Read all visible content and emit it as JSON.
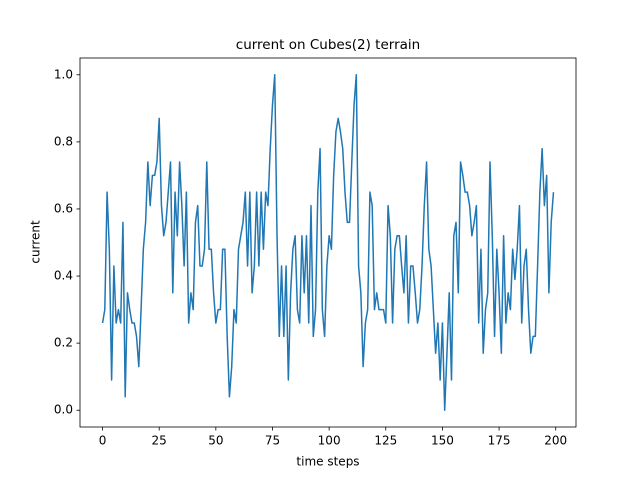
{
  "chart_data": {
    "type": "line",
    "title": "current on Cubes(2) terrain",
    "x_label": "time steps",
    "y_label": "current",
    "color": "#1f77b4",
    "x": [
      0,
      1,
      2,
      3,
      4,
      5,
      6,
      7,
      8,
      9,
      10,
      11,
      12,
      13,
      14,
      15,
      16,
      17,
      18,
      19,
      20,
      21,
      22,
      23,
      24,
      25,
      26,
      27,
      28,
      29,
      30,
      31,
      32,
      33,
      34,
      35,
      36,
      37,
      38,
      39,
      40,
      41,
      42,
      43,
      44,
      45,
      46,
      47,
      48,
      49,
      50,
      51,
      52,
      53,
      54,
      55,
      56,
      57,
      58,
      59,
      60,
      61,
      62,
      63,
      64,
      65,
      66,
      67,
      68,
      69,
      70,
      71,
      72,
      73,
      74,
      75,
      76,
      77,
      78,
      79,
      80,
      81,
      82,
      83,
      84,
      85,
      86,
      87,
      88,
      89,
      90,
      91,
      92,
      93,
      94,
      95,
      96,
      97,
      98,
      99,
      100,
      101,
      102,
      103,
      104,
      105,
      106,
      107,
      108,
      109,
      110,
      111,
      112,
      113,
      114,
      115,
      116,
      117,
      118,
      119,
      120,
      121,
      122,
      123,
      124,
      125,
      126,
      127,
      128,
      129,
      130,
      131,
      132,
      133,
      134,
      135,
      136,
      137,
      138,
      139,
      140,
      141,
      142,
      143,
      144,
      145,
      146,
      147,
      148,
      149,
      150,
      151,
      152,
      153,
      154,
      155,
      156,
      157,
      158,
      159,
      160,
      161,
      162,
      163,
      164,
      165,
      166,
      167,
      168,
      169,
      170,
      171,
      172,
      173,
      174,
      175,
      176,
      177,
      178,
      179,
      180,
      181,
      182,
      183,
      184,
      185,
      186,
      187,
      188,
      189,
      190,
      191,
      192,
      193,
      194,
      195,
      196,
      197,
      198,
      199
    ],
    "values": [
      0.26,
      0.3,
      0.65,
      0.48,
      0.09,
      0.43,
      0.26,
      0.3,
      0.26,
      0.56,
      0.04,
      0.35,
      0.3,
      0.26,
      0.26,
      0.22,
      0.13,
      0.3,
      0.48,
      0.56,
      0.74,
      0.61,
      0.7,
      0.7,
      0.74,
      0.87,
      0.61,
      0.52,
      0.56,
      0.65,
      0.74,
      0.35,
      0.65,
      0.52,
      0.74,
      0.61,
      0.43,
      0.65,
      0.26,
      0.35,
      0.3,
      0.56,
      0.61,
      0.43,
      0.43,
      0.48,
      0.74,
      0.48,
      0.48,
      0.35,
      0.26,
      0.3,
      0.3,
      0.48,
      0.48,
      0.22,
      0.04,
      0.13,
      0.3,
      0.26,
      0.48,
      0.52,
      0.56,
      0.65,
      0.43,
      0.65,
      0.35,
      0.43,
      0.65,
      0.43,
      0.65,
      0.48,
      0.65,
      0.61,
      0.78,
      0.91,
      1.0,
      0.52,
      0.22,
      0.43,
      0.22,
      0.43,
      0.09,
      0.35,
      0.48,
      0.52,
      0.3,
      0.26,
      0.52,
      0.35,
      0.52,
      0.26,
      0.61,
      0.22,
      0.3,
      0.65,
      0.78,
      0.3,
      0.22,
      0.43,
      0.52,
      0.48,
      0.7,
      0.83,
      0.87,
      0.83,
      0.78,
      0.65,
      0.56,
      0.56,
      0.74,
      0.91,
      1.0,
      0.43,
      0.35,
      0.13,
      0.26,
      0.3,
      0.65,
      0.61,
      0.3,
      0.35,
      0.3,
      0.3,
      0.3,
      0.26,
      0.61,
      0.52,
      0.26,
      0.48,
      0.52,
      0.52,
      0.43,
      0.35,
      0.52,
      0.26,
      0.43,
      0.43,
      0.35,
      0.26,
      0.3,
      0.43,
      0.61,
      0.74,
      0.48,
      0.43,
      0.3,
      0.17,
      0.26,
      0.09,
      0.26,
      0.0,
      0.17,
      0.35,
      0.09,
      0.52,
      0.56,
      0.35,
      0.74,
      0.7,
      0.65,
      0.65,
      0.61,
      0.52,
      0.56,
      0.61,
      0.26,
      0.48,
      0.17,
      0.3,
      0.35,
      0.74,
      0.52,
      0.22,
      0.48,
      0.35,
      0.17,
      0.52,
      0.26,
      0.35,
      0.3,
      0.48,
      0.39,
      0.48,
      0.61,
      0.26,
      0.43,
      0.48,
      0.3,
      0.17,
      0.22,
      0.22,
      0.43,
      0.65,
      0.78,
      0.61,
      0.7,
      0.35,
      0.56,
      0.65
    ],
    "xlim": [
      -9.95,
      208.95
    ],
    "xticks": [
      0,
      25,
      50,
      75,
      100,
      125,
      150,
      175,
      200
    ],
    "ylim": [
      -0.05,
      1.05
    ],
    "yticks": [
      {
        "value": 0,
        "label": "0.0"
      },
      0.2,
      0.4,
      0.6,
      0.8,
      {
        "value": 1,
        "label": "1.0"
      }
    ]
  }
}
